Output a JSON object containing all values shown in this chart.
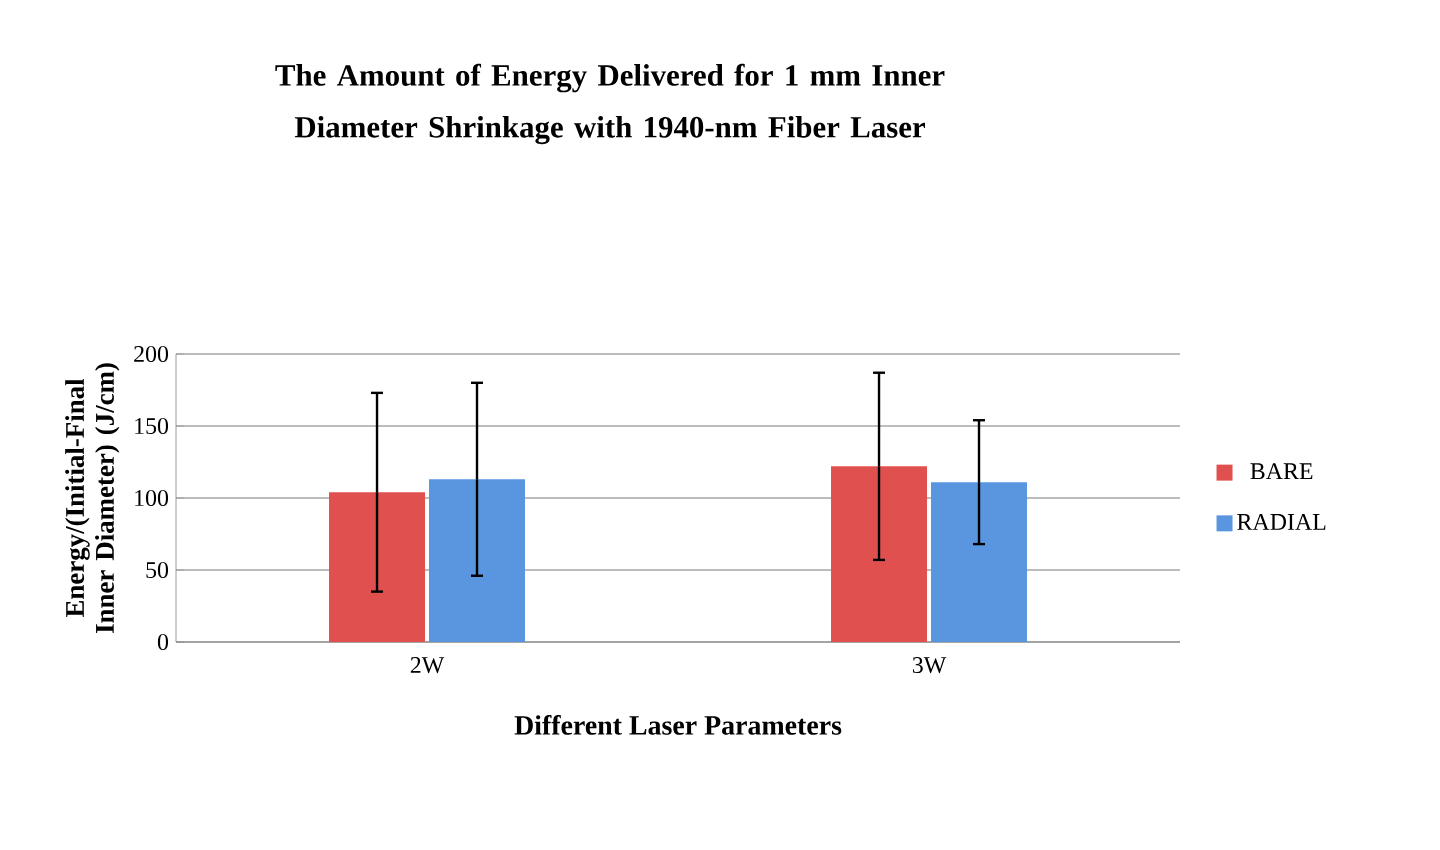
{
  "chart_data": {
    "type": "bar",
    "title": "The Amount of Energy Delivered for 1 mm Inner Diameter Shrinkage with 1940-nm Fiber Laser",
    "xlabel": "Different Laser Parameters",
    "ylabel": "Energy/(Initial-Final Inner Diameter) (J/cm)",
    "categories": [
      "2W",
      "3W"
    ],
    "series": [
      {
        "name": "BARE",
        "color": "#e0504f",
        "values": [
          104,
          122
        ],
        "errors": [
          69,
          65
        ]
      },
      {
        "name": "RADIAL",
        "color": "#5a96e0",
        "values": [
          113,
          111
        ],
        "errors": [
          67,
          43
        ]
      }
    ],
    "ylim": [
      0,
      200
    ],
    "yticks": [
      0,
      50,
      100,
      150,
      200
    ],
    "grid": "y",
    "legend": "right"
  }
}
